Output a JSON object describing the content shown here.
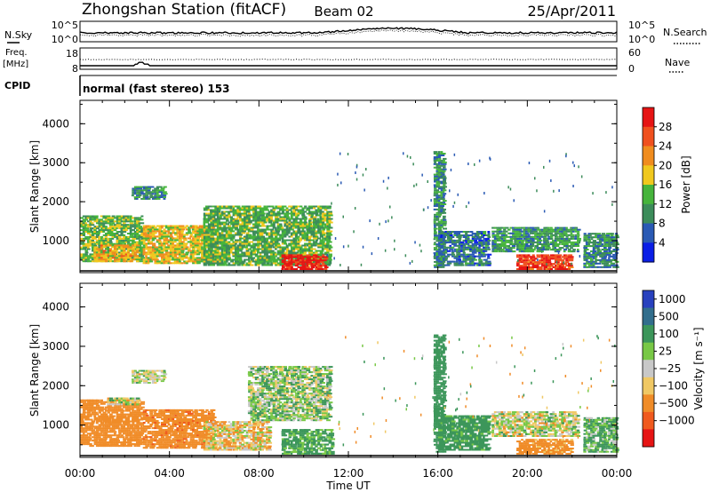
{
  "header": {
    "station": "Zhongshan Station (fitACF)",
    "beam": "Beam 02",
    "date": "25/Apr/2011"
  },
  "strip_panels": {
    "nsky": {
      "label": "N.Sky",
      "ticks": [
        "10^5",
        "10^0"
      ]
    },
    "nsearch": {
      "label": "N.Search",
      "ticks": [
        "10^5",
        "10^0"
      ]
    },
    "freq": {
      "label_line1": "Freq.",
      "label_line2": "[MHz]",
      "ticks": [
        "18",
        "8"
      ]
    },
    "nave": {
      "label": "Nave",
      "ticks": [
        "60",
        "0"
      ]
    },
    "cpid": {
      "label": "CPID",
      "text": "normal (fast stereo) 153"
    }
  },
  "colors": {
    "power_scale": [
      "#0a1ee6",
      "#2a5ab4",
      "#3c8c5a",
      "#46b43c",
      "#f0c81e",
      "#f08c1e",
      "#f0501e",
      "#e61414"
    ],
    "velocity_scale": [
      "#2841be",
      "#326e8c",
      "#3c965a",
      "#78c846",
      "#c8c8c8",
      "#f0c864",
      "#f08c28",
      "#f05a1e",
      "#e61414"
    ]
  },
  "chart_data": [
    {
      "type": "heatmap",
      "name_on_axis": "Power [dB]",
      "ylabel": "Slant Range [km]",
      "xlabel": "Time UT",
      "x_ticks": [
        "00:00",
        "04:00",
        "08:00",
        "12:00",
        "16:00",
        "20:00",
        "00:00"
      ],
      "x_range_hours": [
        0,
        24
      ],
      "y_ticks": [
        1000,
        2000,
        3000,
        4000
      ],
      "ylim": [
        180,
        4600
      ],
      "colorbar_ticks": [
        "28",
        "24",
        "20",
        "16",
        "12",
        "8",
        "4"
      ],
      "colorbar_range": [
        0,
        32
      ],
      "echo_regions": [
        {
          "t_start": 0.0,
          "t_end": 2.8,
          "r_min": 450,
          "r_max": 1650,
          "level": 14
        },
        {
          "t_start": 0.6,
          "t_end": 2.6,
          "r_min": 450,
          "r_max": 900,
          "level": 20
        },
        {
          "t_start": 2.3,
          "t_end": 3.8,
          "r_min": 2050,
          "r_max": 2400,
          "level": 10
        },
        {
          "t_start": 2.8,
          "t_end": 6.0,
          "r_min": 400,
          "r_max": 1400,
          "level": 18
        },
        {
          "t_start": 5.5,
          "t_end": 11.2,
          "r_min": 350,
          "r_max": 1900,
          "level": 13
        },
        {
          "t_start": 9.0,
          "t_end": 11.0,
          "r_min": 250,
          "r_max": 650,
          "level": 30
        },
        {
          "t_start": 15.8,
          "t_end": 16.3,
          "r_min": 300,
          "r_max": 3300,
          "level": 10
        },
        {
          "t_start": 16.0,
          "t_end": 18.3,
          "r_min": 350,
          "r_max": 1250,
          "level": 8
        },
        {
          "t_start": 18.4,
          "t_end": 22.3,
          "r_min": 700,
          "r_max": 1350,
          "level": 11
        },
        {
          "t_start": 19.5,
          "t_end": 22.0,
          "r_min": 250,
          "r_max": 650,
          "level": 28
        },
        {
          "t_start": 22.5,
          "t_end": 24.0,
          "r_min": 300,
          "r_max": 1200,
          "level": 9
        }
      ]
    },
    {
      "type": "heatmap",
      "name_on_axis": "Velocity [m s⁻¹]",
      "ylabel": "Slant Range [km]",
      "xlabel": "Time UT",
      "x_ticks": [
        "00:00",
        "04:00",
        "08:00",
        "12:00",
        "16:00",
        "20:00",
        "00:00"
      ],
      "x_range_hours": [
        0,
        24
      ],
      "y_ticks": [
        1000,
        2000,
        3000,
        4000
      ],
      "ylim": [
        180,
        4600
      ],
      "colorbar_ticks": [
        "1000",
        "500",
        "100",
        "25",
        "−25",
        "−100",
        "−500",
        "−1000"
      ],
      "echo_regions": [
        {
          "t_start": 0.0,
          "t_end": 2.8,
          "r_min": 450,
          "r_max": 1650,
          "level": -300
        },
        {
          "t_start": 1.2,
          "t_end": 2.6,
          "r_min": 1500,
          "r_max": 1700,
          "level": 0
        },
        {
          "t_start": 2.3,
          "t_end": 3.8,
          "r_min": 2050,
          "r_max": 2400,
          "level": 0
        },
        {
          "t_start": 2.8,
          "t_end": 6.0,
          "r_min": 400,
          "r_max": 1400,
          "level": -400
        },
        {
          "t_start": 5.5,
          "t_end": 8.5,
          "r_min": 350,
          "r_max": 1100,
          "level": -50
        },
        {
          "t_start": 7.5,
          "t_end": 11.2,
          "r_min": 1100,
          "r_max": 2500,
          "level": 50
        },
        {
          "t_start": 9.0,
          "t_end": 11.3,
          "r_min": 250,
          "r_max": 900,
          "level": 150
        },
        {
          "t_start": 15.8,
          "t_end": 16.3,
          "r_min": 300,
          "r_max": 3300,
          "level": 300
        },
        {
          "t_start": 16.0,
          "t_end": 18.3,
          "r_min": 350,
          "r_max": 1250,
          "level": 200
        },
        {
          "t_start": 18.4,
          "t_end": 22.3,
          "r_min": 700,
          "r_max": 1350,
          "level": 0
        },
        {
          "t_start": 19.5,
          "t_end": 22.0,
          "r_min": 250,
          "r_max": 650,
          "level": -200
        },
        {
          "t_start": 22.5,
          "t_end": 24.0,
          "r_min": 300,
          "r_max": 1200,
          "level": 120
        }
      ]
    }
  ]
}
